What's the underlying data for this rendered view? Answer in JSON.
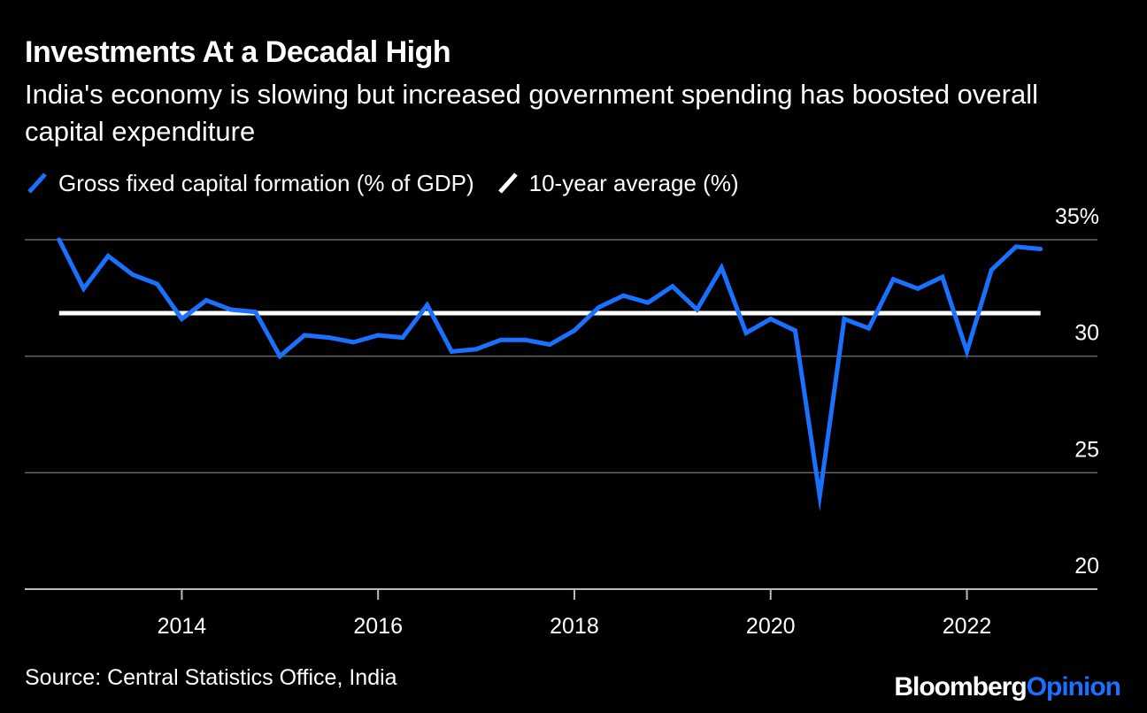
{
  "header": {
    "title": "Investments At a Decadal High",
    "subtitle": "India's economy is slowing but increased government spending has boosted overall capital expenditure"
  },
  "footer": {
    "source": "Source: Central Statistics Office, India",
    "brand_part1": "Bloomberg",
    "brand_part2": "Opinion"
  },
  "colors": {
    "background": "#000000",
    "series": "#1a70ff",
    "average": "#ffffff",
    "grid": "#666666"
  },
  "chart_data": {
    "type": "line",
    "title": "Investments At a Decadal High",
    "subtitle": "India's economy is slowing but increased government spending has boosted overall capital expenditure",
    "legend": "top-left",
    "grid": true,
    "ylim": [
      20,
      35
    ],
    "xlim": [
      2012.4,
      2023.33
    ],
    "y_ticks": [
      {
        "value": 35,
        "label": "35%"
      },
      {
        "value": 30,
        "label": "30"
      },
      {
        "value": 25,
        "label": "25"
      },
      {
        "value": 20,
        "label": "20"
      }
    ],
    "x_ticks": [
      {
        "value": 2014,
        "label": "2014"
      },
      {
        "value": 2016,
        "label": "2016"
      },
      {
        "value": 2018,
        "label": "2018"
      },
      {
        "value": 2020,
        "label": "2020"
      },
      {
        "value": 2022,
        "label": "2022"
      }
    ],
    "series": [
      {
        "name": "Gross fixed capital formation (% of GDP)",
        "color": "#1a70ff",
        "x": [
          2012.75,
          2013.0,
          2013.25,
          2013.5,
          2013.75,
          2014.0,
          2014.25,
          2014.5,
          2014.75,
          2015.0,
          2015.25,
          2015.5,
          2015.75,
          2016.0,
          2016.25,
          2016.5,
          2016.75,
          2017.0,
          2017.25,
          2017.5,
          2017.75,
          2018.0,
          2018.25,
          2018.5,
          2018.75,
          2019.0,
          2019.25,
          2019.5,
          2019.75,
          2020.0,
          2020.25,
          2020.5,
          2020.75,
          2021.0,
          2021.25,
          2021.5,
          2021.75,
          2022.0,
          2022.25,
          2022.5,
          2022.75
        ],
        "values": [
          35.0,
          32.9,
          34.3,
          33.5,
          33.1,
          31.6,
          32.4,
          32.0,
          31.9,
          30.0,
          30.9,
          30.8,
          30.6,
          30.9,
          30.8,
          32.2,
          30.2,
          30.3,
          30.7,
          30.7,
          30.5,
          31.1,
          32.1,
          32.6,
          32.3,
          33.0,
          32.0,
          33.8,
          31.0,
          31.6,
          31.1,
          24.0,
          31.6,
          31.2,
          33.3,
          32.9,
          33.4,
          30.2,
          33.7,
          34.7,
          34.6
        ]
      },
      {
        "name": "10-year average (%)",
        "color": "#ffffff",
        "x": [
          2012.75,
          2022.75
        ],
        "values": [
          31.85,
          31.85
        ]
      }
    ]
  }
}
